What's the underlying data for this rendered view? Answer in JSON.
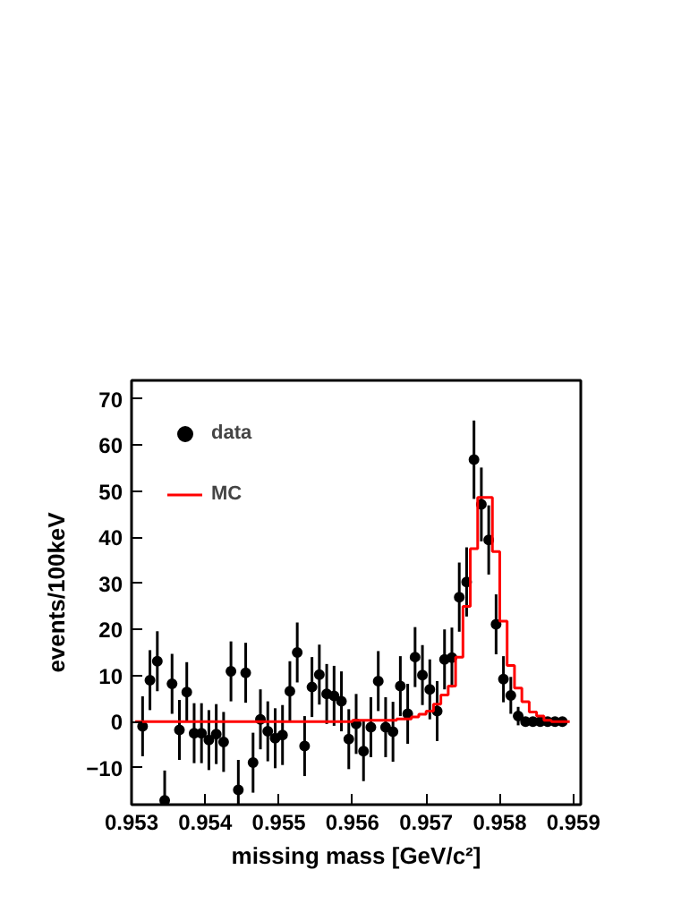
{
  "chart_data": {
    "type": "scatter",
    "xlabel": "missing mass [GeV/c²]",
    "ylabel": "events/100keV",
    "x": [
      0.95305,
      0.95315,
      0.95325,
      0.95335,
      0.95345,
      0.95355,
      0.95365,
      0.95375,
      0.95385,
      0.95395,
      0.95405,
      0.95415,
      0.95425,
      0.95435,
      0.95445,
      0.95455,
      0.95465,
      0.95475,
      0.95485,
      0.95495,
      0.95505,
      0.95515,
      0.95525,
      0.95535,
      0.95545,
      0.95555,
      0.95565,
      0.95575,
      0.95585,
      0.95595,
      0.95605,
      0.95615,
      0.95625,
      0.95635,
      0.95645,
      0.95655,
      0.95665,
      0.95675,
      0.95685,
      0.95695,
      0.95705,
      0.95715,
      0.95725,
      0.95735,
      0.95745,
      0.95755,
      0.95765,
      0.95775,
      0.95785,
      0.95795,
      0.95805,
      0.95815,
      0.95825,
      0.95835,
      0.95845,
      0.95855,
      0.95865,
      0.95875,
      0.95885,
      0.95895
    ],
    "series": [
      {
        "name": "data",
        "color": "#000000",
        "marker": "circle",
        "values": [
          null,
          -1,
          9.0,
          13.1,
          -17.1,
          8.2,
          -1.8,
          6.4,
          -2.5,
          -2.5,
          -4.0,
          -2.7,
          -4.4,
          10.9,
          -14.8,
          10.6,
          -8.9,
          0.5,
          -2.1,
          -3.6,
          -2.9,
          6.6,
          15.0,
          -5.3,
          7.5,
          10.2,
          6.0,
          5.6,
          4.4,
          -3.8,
          -0.5,
          -6.4,
          -1.2,
          8.8,
          -1.2,
          -2.2,
          7.7,
          1.7,
          14.0,
          10.1,
          7.0,
          2.3,
          13.5,
          13.9,
          27.0,
          30.3,
          56.8,
          47.1,
          39.4,
          21.1,
          9.2,
          5.7,
          1.2,
          0,
          0,
          0,
          0,
          0,
          0,
          null
        ],
        "errors": [
          null,
          6.5,
          6.5,
          6.5,
          6.5,
          6.5,
          6.5,
          6.5,
          6.5,
          6.5,
          6.5,
          6.5,
          6.5,
          6.5,
          6.5,
          6.5,
          6.5,
          6.5,
          6.5,
          6.5,
          6.5,
          6.5,
          6.5,
          6.5,
          6.5,
          6.5,
          6.5,
          6.5,
          6.5,
          6.5,
          6.5,
          6.5,
          6.5,
          6.5,
          6.5,
          6.5,
          6.5,
          6.5,
          6.5,
          6.5,
          6.5,
          6.5,
          6.5,
          6.5,
          7.5,
          7.5,
          8.5,
          8,
          7.5,
          6.5,
          5,
          4,
          2,
          null,
          null,
          null,
          null,
          null,
          null,
          null
        ]
      },
      {
        "name": "MC",
        "type": "step",
        "color": "#ff0000",
        "line_style": "solid",
        "values": [
          0,
          0,
          0,
          0,
          0,
          0,
          0,
          0,
          0,
          0,
          0,
          0,
          0,
          0,
          0,
          0,
          0,
          0,
          0,
          0,
          0,
          0,
          0,
          0,
          0,
          0,
          0,
          0,
          0,
          0,
          0.3,
          0.3,
          0.3,
          0.3,
          0.3,
          0.3,
          0.6,
          0.6,
          1.0,
          1.6,
          2.3,
          3.8,
          5.8,
          7.7,
          14,
          25,
          37.5,
          48.6,
          48.6,
          36.9,
          21.8,
          12.2,
          7.3,
          4.3,
          2.1,
          1.2,
          0.3,
          0,
          0,
          0
        ]
      }
    ],
    "xlim": [
      0.953,
      0.9591
    ],
    "ylim": [
      -18,
      74
    ],
    "xticks": [
      0.953,
      0.954,
      0.955,
      0.956,
      0.957,
      0.958,
      0.959
    ],
    "yticks": [
      -10,
      0,
      10,
      20,
      30,
      40,
      50,
      60,
      70
    ],
    "grid": false,
    "legend": "top left"
  }
}
